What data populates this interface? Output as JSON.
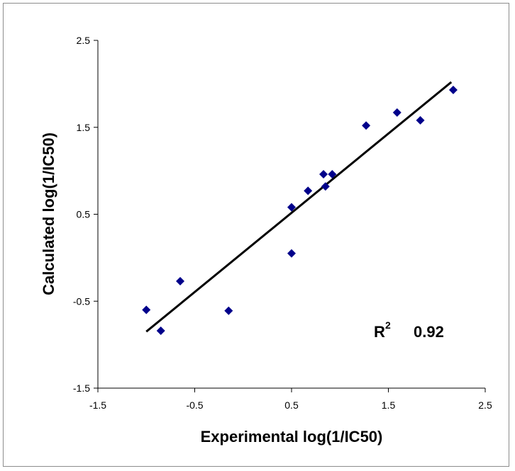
{
  "chart_data": {
    "type": "scatter",
    "title": "",
    "xlabel": "Experimental log(1/IC50)",
    "ylabel": "Calculated log(1/IC50)",
    "xlim": [
      -1.5,
      2.5
    ],
    "ylim": [
      -1.5,
      2.5
    ],
    "x_ticks": [
      "-1.5",
      "-0.5",
      "0.5",
      "1.5",
      "2.5"
    ],
    "y_ticks": [
      "-1.5",
      "-0.5",
      "0.5",
      "1.5",
      "2.5"
    ],
    "x_tick_values": [
      -1.5,
      -0.5,
      0.5,
      1.5,
      2.5
    ],
    "y_tick_values": [
      -1.5,
      -0.5,
      0.5,
      1.5,
      2.5
    ],
    "grid": false,
    "marker": "diamond",
    "marker_color": "#00008B",
    "line_color": "#000000",
    "points": [
      {
        "x": -1.0,
        "y": -0.6
      },
      {
        "x": -0.85,
        "y": -0.84
      },
      {
        "x": -0.65,
        "y": -0.27
      },
      {
        "x": -0.15,
        "y": -0.61
      },
      {
        "x": 0.5,
        "y": 0.05
      },
      {
        "x": 0.5,
        "y": 0.58
      },
      {
        "x": 0.67,
        "y": 0.77
      },
      {
        "x": 0.83,
        "y": 0.96
      },
      {
        "x": 0.85,
        "y": 0.82
      },
      {
        "x": 0.92,
        "y": 0.96
      },
      {
        "x": 1.27,
        "y": 1.52
      },
      {
        "x": 1.59,
        "y": 1.67
      },
      {
        "x": 1.83,
        "y": 1.58
      },
      {
        "x": 2.17,
        "y": 1.93
      }
    ],
    "trendline": {
      "x": [
        -1.0,
        2.15
      ],
      "y": [
        -0.85,
        2.02
      ]
    },
    "annotation": {
      "r2_label": "R",
      "r2_superscript": "2",
      "r2_value": "0.92"
    }
  }
}
